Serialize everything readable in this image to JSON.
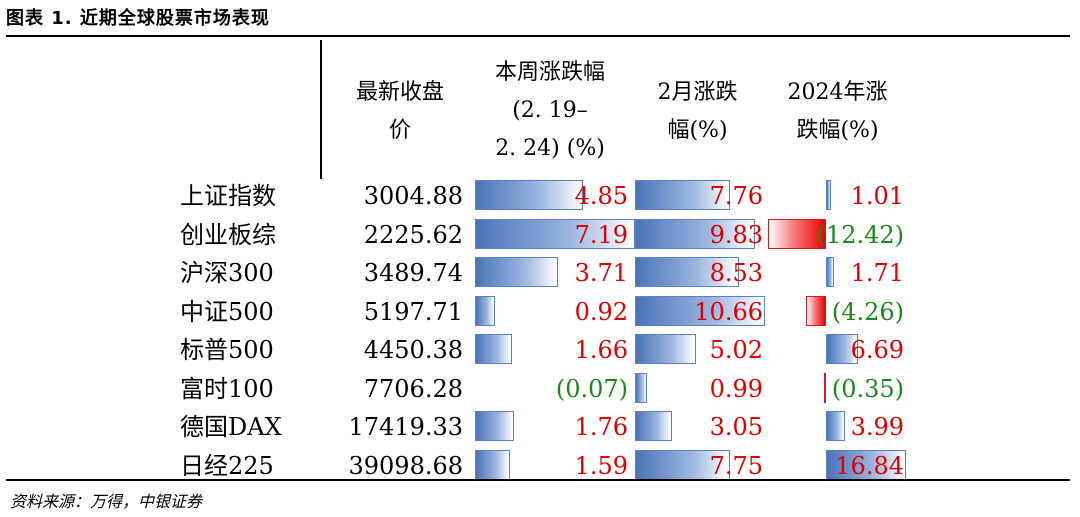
{
  "title": "图表 1. 近期全球股票市场表现",
  "headers": {
    "close_line1": "最新收盘",
    "close_line2": "价",
    "week_line1": "本周涨跌幅",
    "week_line2": "(2. 19–",
    "week_line3": "2. 24) (%)",
    "feb_line1": "2月涨跌",
    "feb_line2": "幅(%)",
    "ytd_line1": "2024年涨",
    "ytd_line2": "跌幅(%)"
  },
  "rows": [
    {
      "name": "上证指数",
      "close": "3004.88",
      "week": "4.85",
      "week_num": 4.85,
      "feb": "7.76",
      "feb_num": 7.76,
      "ytd": "1.01",
      "ytd_num": 1.01
    },
    {
      "name": "创业板综",
      "close": "2225.62",
      "week": "7.19",
      "week_num": 7.19,
      "feb": "9.83",
      "feb_num": 9.83,
      "ytd": "(12.42)",
      "ytd_num": -12.42
    },
    {
      "name": "沪深300",
      "close": "3489.74",
      "week": "3.71",
      "week_num": 3.71,
      "feb": "8.53",
      "feb_num": 8.53,
      "ytd": "1.71",
      "ytd_num": 1.71
    },
    {
      "name": "中证500",
      "close": "5197.71",
      "week": "0.92",
      "week_num": 0.92,
      "feb": "10.66",
      "feb_num": 10.66,
      "ytd": "(4.26)",
      "ytd_num": -4.26
    },
    {
      "name": "标普500",
      "close": "4450.38",
      "week": "1.66",
      "week_num": 1.66,
      "feb": "5.02",
      "feb_num": 5.02,
      "ytd": "6.69",
      "ytd_num": 6.69
    },
    {
      "name": "富时100",
      "close": "7706.28",
      "week": "(0.07)",
      "week_num": -0.07,
      "feb": "0.99",
      "feb_num": 0.99,
      "ytd": "(0.35)",
      "ytd_num": -0.35
    },
    {
      "name": "德国DAX",
      "close": "17419.33",
      "week": "1.76",
      "week_num": 1.76,
      "feb": "3.05",
      "feb_num": 3.05,
      "ytd": "3.99",
      "ytd_num": 3.99
    },
    {
      "name": "日经225",
      "close": "39098.68",
      "week": "1.59",
      "week_num": 1.59,
      "feb": "7.75",
      "feb_num": 7.75,
      "ytd": "16.84",
      "ytd_num": 16.84
    }
  ],
  "source": "资料来源：万得，中银证券",
  "colors": {
    "up": "#e00000",
    "down": "#1a8a1a",
    "bar_positive": "#4a74b8",
    "bar_negative": "#ee0000"
  }
}
